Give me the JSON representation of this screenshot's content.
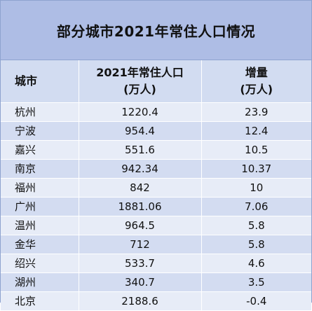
{
  "title": "部分城市2021年常住人口情况",
  "headers": {
    "city": "城市",
    "population_line1": "2021年常住人口",
    "population_line2": "(万人)",
    "increase_line1": "增量",
    "increase_line2": "(万人)"
  },
  "rows": [
    {
      "city": "杭州",
      "population": "1220.4",
      "increase": "23.9"
    },
    {
      "city": "宁波",
      "population": "954.4",
      "increase": "12.4"
    },
    {
      "city": "嘉兴",
      "population": "551.6",
      "increase": "10.5"
    },
    {
      "city": "南京",
      "population": "942.34",
      "increase": "10.37"
    },
    {
      "city": "福州",
      "population": "842",
      "increase": "10"
    },
    {
      "city": "广州",
      "population": "1881.06",
      "increase": "7.06"
    },
    {
      "city": "温州",
      "population": "964.5",
      "increase": "5.8"
    },
    {
      "city": "金华",
      "population": "712",
      "increase": "5.8"
    },
    {
      "city": "绍兴",
      "population": "533.7",
      "increase": "4.6"
    },
    {
      "city": "湖州",
      "population": "340.7",
      "increase": "3.5"
    },
    {
      "city": "北京",
      "population": "2188.6",
      "increase": "-0.4"
    }
  ]
}
